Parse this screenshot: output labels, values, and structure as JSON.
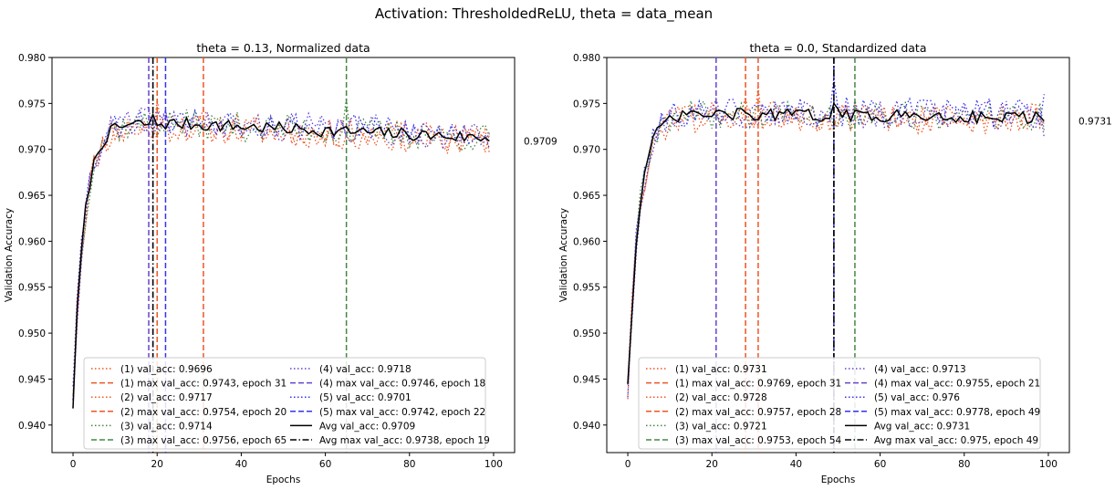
{
  "suptitle": "Activation: ThresholdedReLU, theta = data_mean",
  "colors": {
    "s1": "#ee5522",
    "s2": "#ee5522",
    "s3": "#448844",
    "s4": "#6644cc",
    "s5": "#3333ee",
    "avg": "#000000"
  },
  "chart_data": [
    {
      "type": "line",
      "title": "theta = 0.13, Normalized data",
      "xlabel": "Epochs",
      "ylabel": "Validation Accuracy",
      "xlim": [
        -5,
        105
      ],
      "ylim": [
        0.937,
        0.98
      ],
      "xticks": [
        0,
        20,
        40,
        60,
        80,
        100
      ],
      "yticks": [
        0.94,
        0.945,
        0.95,
        0.955,
        0.96,
        0.965,
        0.97,
        0.975,
        0.98
      ],
      "ytick_labels": [
        "0.940",
        "0.945",
        "0.950",
        "0.955",
        "0.960",
        "0.965",
        "0.970",
        "0.975",
        "0.980"
      ],
      "end_label": "0.9709",
      "series": [
        {
          "key": "s1",
          "final": 0.9696,
          "max_epoch": 31,
          "max_val": 0.9743,
          "seed": 11
        },
        {
          "key": "s2",
          "final": 0.9717,
          "max_epoch": 20,
          "max_val": 0.9754,
          "seed": 23
        },
        {
          "key": "s3",
          "final": 0.9714,
          "max_epoch": 65,
          "max_val": 0.9756,
          "seed": 37
        },
        {
          "key": "s4",
          "final": 0.9718,
          "max_epoch": 18,
          "max_val": 0.9746,
          "seed": 41
        },
        {
          "key": "s5",
          "final": 0.9701,
          "max_epoch": 22,
          "max_val": 0.9742,
          "seed": 53
        }
      ],
      "avg": {
        "final": 0.9709,
        "max_epoch": 19,
        "max_val": 0.9738,
        "plateau": 0.9728,
        "decay": 0.0016
      },
      "legend_col1": [
        {
          "style": "dot",
          "key": "s1",
          "label": "(1) val_acc: 0.9696"
        },
        {
          "style": "dash",
          "key": "s1",
          "label": "(1) max val_acc: 0.9743, epoch 31"
        },
        {
          "style": "dot",
          "key": "s2",
          "label": "(2) val_acc: 0.9717"
        },
        {
          "style": "dash",
          "key": "s2",
          "label": "(2) max val_acc: 0.9754, epoch 20"
        },
        {
          "style": "dot",
          "key": "s3",
          "label": "(3) val_acc: 0.9714"
        },
        {
          "style": "dash",
          "key": "s3",
          "label": "(3) max val_acc: 0.9756, epoch 65"
        }
      ],
      "legend_col2": [
        {
          "style": "dot",
          "key": "s4",
          "label": "(4) val_acc: 0.9718"
        },
        {
          "style": "dash",
          "key": "s4",
          "label": "(4) max val_acc: 0.9746, epoch 18"
        },
        {
          "style": "dot",
          "key": "s5",
          "label": "(5) val_acc: 0.9701"
        },
        {
          "style": "dash",
          "key": "s5",
          "label": "(5) max val_acc: 0.9742, epoch 22"
        },
        {
          "style": "solid",
          "key": "avg",
          "label": "Avg val_acc: 0.9709"
        },
        {
          "style": "dashdot",
          "key": "avg",
          "label": "Avg max val_acc: 0.9738, epoch 19"
        }
      ]
    },
    {
      "type": "line",
      "title": "theta = 0.0, Standardized data",
      "xlabel": "Epochs",
      "ylabel": "Validation Accuracy",
      "xlim": [
        -5,
        105
      ],
      "ylim": [
        0.937,
        0.98
      ],
      "xticks": [
        0,
        20,
        40,
        60,
        80,
        100
      ],
      "yticks": [
        0.94,
        0.945,
        0.95,
        0.955,
        0.96,
        0.965,
        0.97,
        0.975,
        0.98
      ],
      "ytick_labels": [
        "0.940",
        "0.945",
        "0.950",
        "0.955",
        "0.960",
        "0.965",
        "0.970",
        "0.975",
        "0.980"
      ],
      "end_label": "0.9731",
      "series": [
        {
          "key": "s1",
          "final": 0.9731,
          "max_epoch": 31,
          "max_val": 0.9769,
          "seed": 61
        },
        {
          "key": "s2",
          "final": 0.9728,
          "max_epoch": 28,
          "max_val": 0.9757,
          "seed": 73
        },
        {
          "key": "s3",
          "final": 0.9721,
          "max_epoch": 54,
          "max_val": 0.9753,
          "seed": 89
        },
        {
          "key": "s4",
          "final": 0.9713,
          "max_epoch": 21,
          "max_val": 0.9755,
          "seed": 97
        },
        {
          "key": "s5",
          "final": 0.976,
          "max_epoch": 49,
          "max_val": 0.9778,
          "seed": 101
        }
      ],
      "avg": {
        "final": 0.9731,
        "max_epoch": 49,
        "max_val": 0.975,
        "plateau": 0.9738,
        "decay": 0.0003
      },
      "legend_col1": [
        {
          "style": "dot",
          "key": "s1",
          "label": "(1) val_acc: 0.9731"
        },
        {
          "style": "dash",
          "key": "s1",
          "label": "(1) max val_acc: 0.9769, epoch 31"
        },
        {
          "style": "dot",
          "key": "s2",
          "label": "(2) val_acc: 0.9728"
        },
        {
          "style": "dash",
          "key": "s2",
          "label": "(2) max val_acc: 0.9757, epoch 28"
        },
        {
          "style": "dot",
          "key": "s3",
          "label": "(3) val_acc: 0.9721"
        },
        {
          "style": "dash",
          "key": "s3",
          "label": "(3) max val_acc: 0.9753, epoch 54"
        }
      ],
      "legend_col2": [
        {
          "style": "dot",
          "key": "s4",
          "label": "(4) val_acc: 0.9713"
        },
        {
          "style": "dash",
          "key": "s4",
          "label": "(4) max val_acc: 0.9755, epoch 21"
        },
        {
          "style": "dot",
          "key": "s5",
          "label": "(5) val_acc: 0.976"
        },
        {
          "style": "dash",
          "key": "s5",
          "label": "(5) max val_acc: 0.9778, epoch 49"
        },
        {
          "style": "solid",
          "key": "avg",
          "label": "Avg val_acc: 0.9731"
        },
        {
          "style": "dashdot",
          "key": "avg",
          "label": "Avg max val_acc: 0.975, epoch 49"
        }
      ]
    }
  ]
}
